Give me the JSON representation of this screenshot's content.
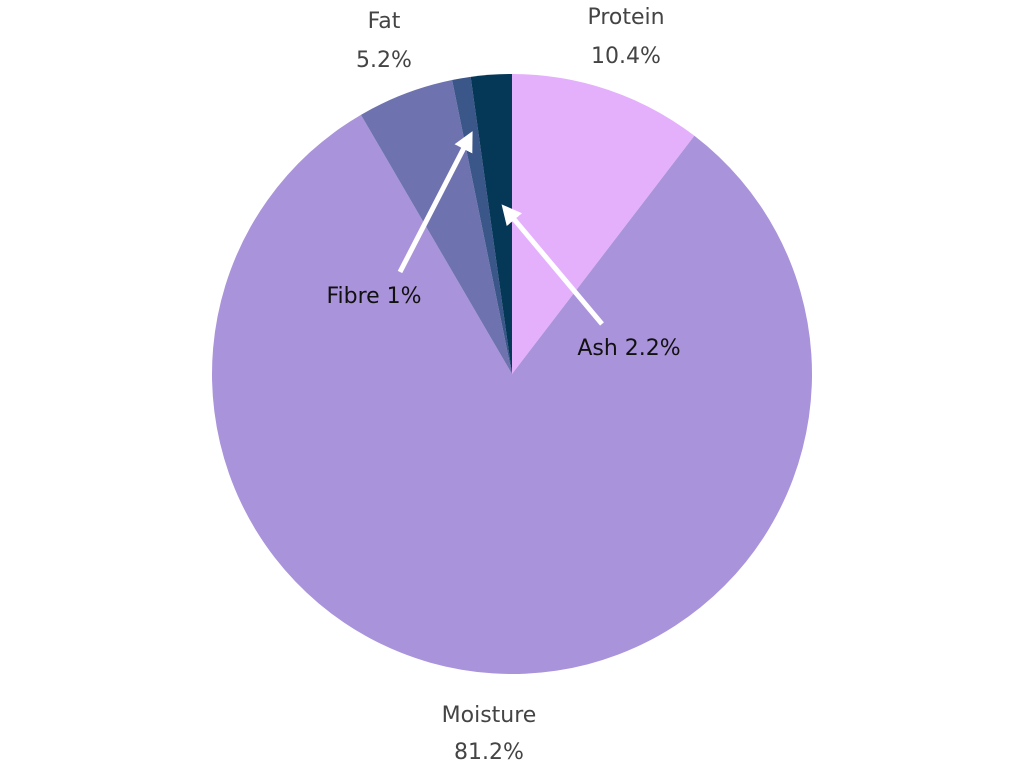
{
  "chart_data": {
    "type": "pie",
    "categories": [
      "Protein",
      "Moisture",
      "Fat",
      "Fibre",
      "Ash"
    ],
    "values": [
      10.4,
      81.2,
      5.2,
      1,
      2.2
    ],
    "value_labels": [
      "10.4%",
      "81.2%",
      "5.2%",
      "1%",
      "2.2%"
    ],
    "colors": [
      "#e4b0fb",
      "#a993da",
      "#6e73b0",
      "#3b5688",
      "#053757"
    ],
    "start": "top",
    "direction": "clockwise",
    "annotations": {
      "fibre": "Fibre 1%",
      "ash": "Ash 2.2%"
    }
  }
}
